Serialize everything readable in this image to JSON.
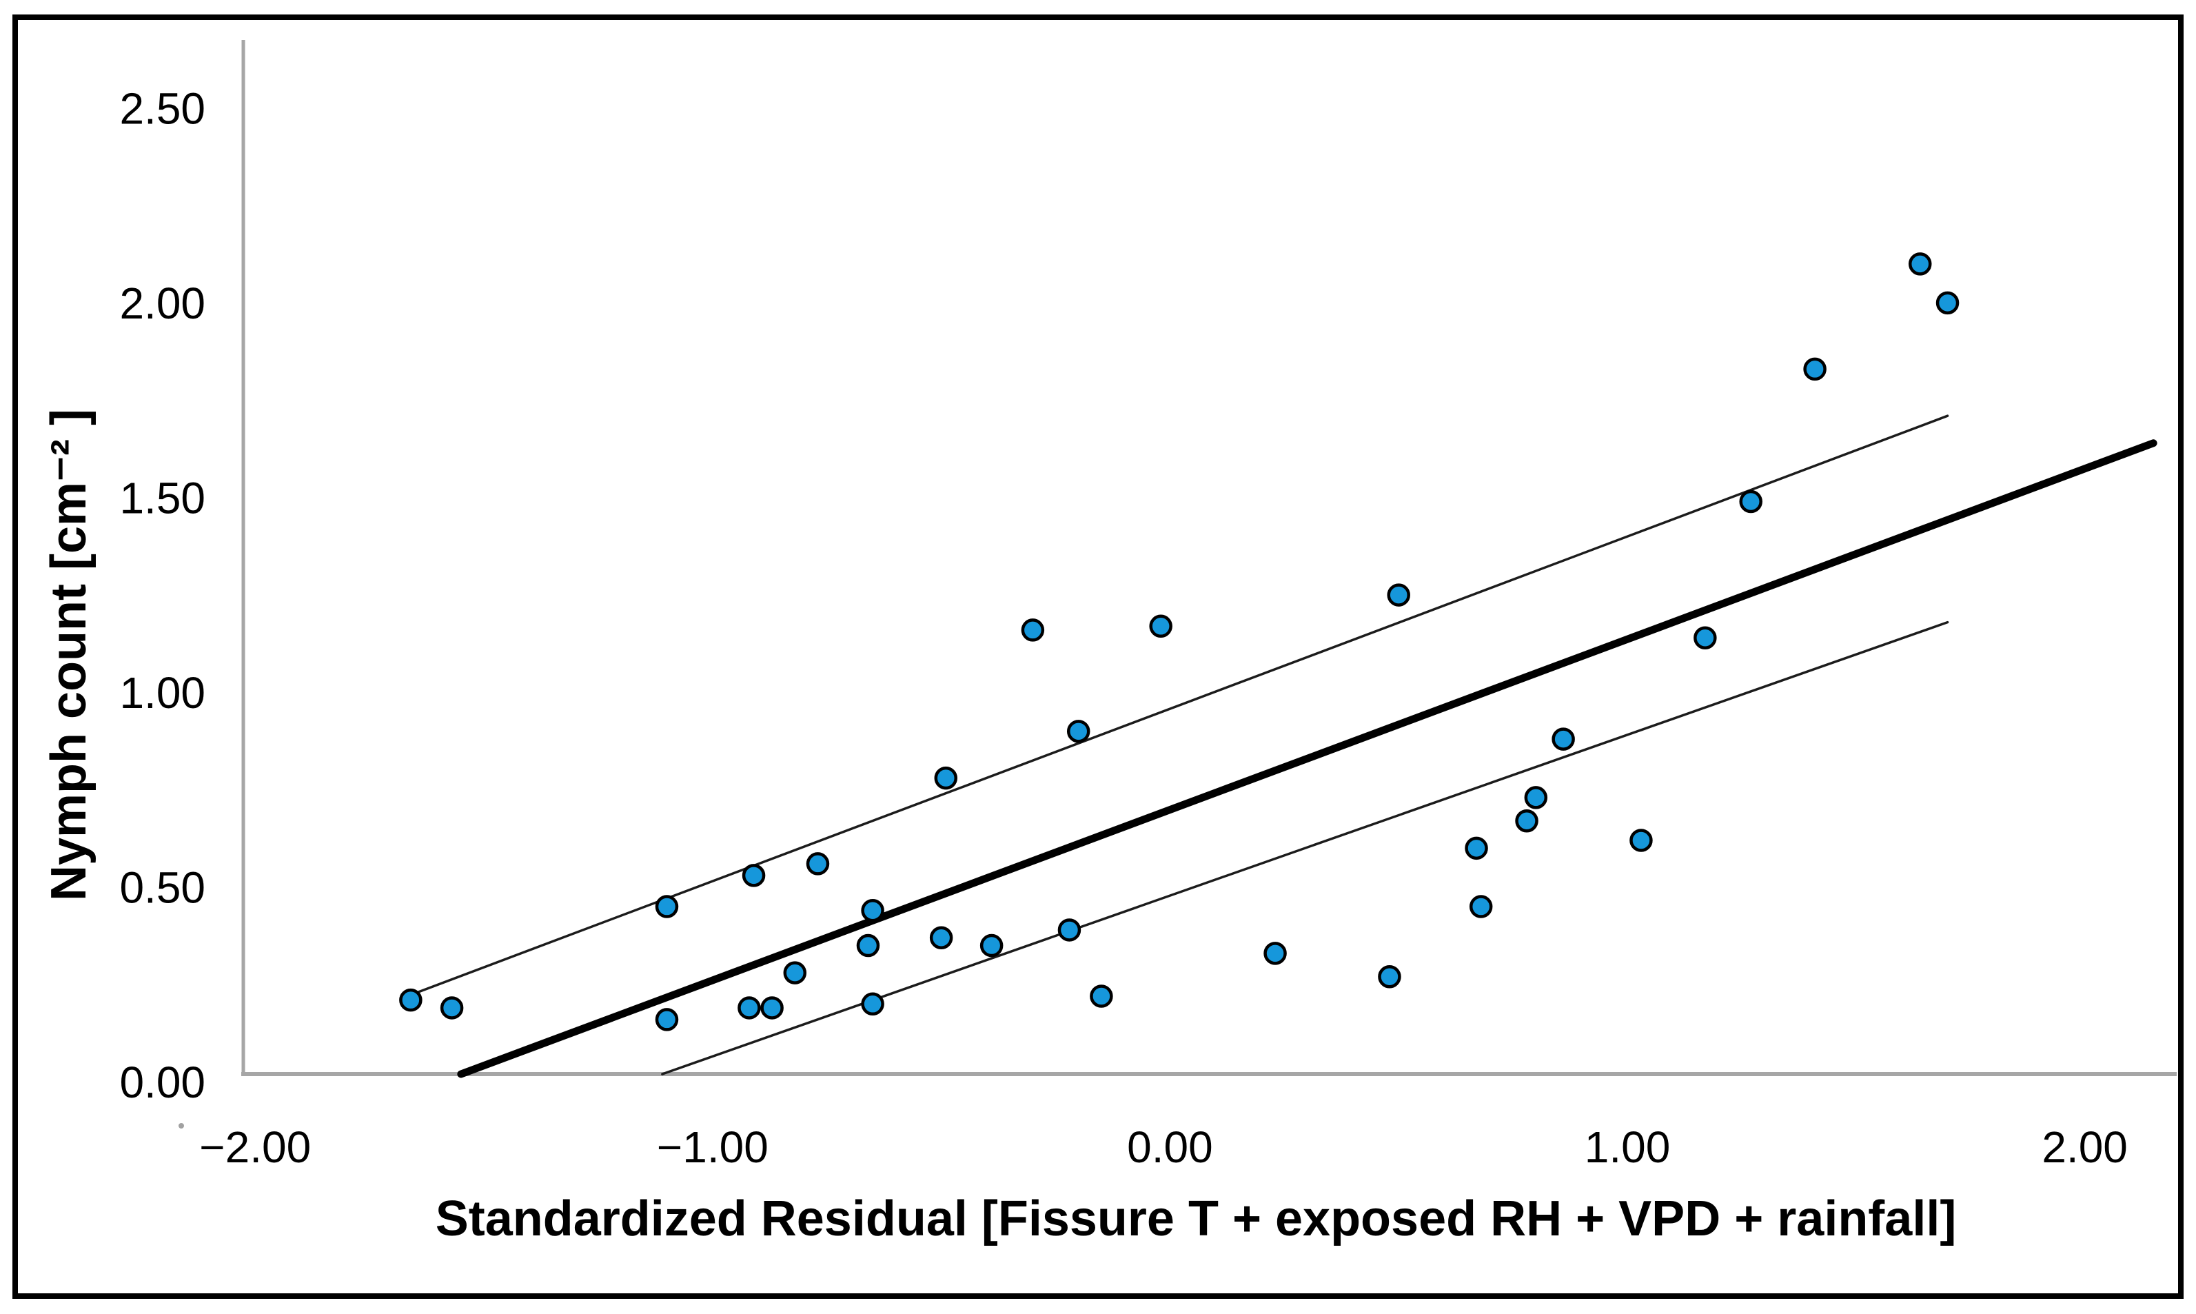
{
  "figure": {
    "background": "#ffffff",
    "border_color": "#000000"
  },
  "chart_data": {
    "type": "scatter",
    "title": "",
    "xlabel": "Standardized Residual [Fissure T + exposed RH + VPD + rainfall]",
    "ylabel": "Nymph count [cm⁻² ]",
    "xlim": [
      -2.026,
      2.201
    ],
    "ylim": [
      0,
      2.655
    ],
    "grid": false,
    "legend": "none",
    "x_ticks": [
      {
        "label": "−2.00",
        "value": -2
      },
      {
        "label": "−1.00",
        "value": -1
      },
      {
        "label": "0.00",
        "value": 0
      },
      {
        "label": "1.00",
        "value": 1
      },
      {
        "label": "2.00",
        "value": 2
      }
    ],
    "y_ticks": [
      {
        "label": "0.00",
        "value": 0
      },
      {
        "label": "0.50",
        "value": 0.5
      },
      {
        "label": "1.00",
        "value": 1
      },
      {
        "label": "1.50",
        "value": 1.5
      },
      {
        "label": "2.00",
        "value": 2
      },
      {
        "label": "2.50",
        "value": 2.5
      }
    ],
    "series": [
      {
        "name": "observations",
        "marker": "circle",
        "points": [
          [
            -1.66,
            0.19
          ],
          [
            -1.57,
            0.17
          ],
          [
            -1.1,
            0.43
          ],
          [
            -1.1,
            0.14
          ],
          [
            -0.91,
            0.51
          ],
          [
            -0.92,
            0.17
          ],
          [
            -0.87,
            0.17
          ],
          [
            -0.82,
            0.26
          ],
          [
            -0.77,
            0.54
          ],
          [
            -0.66,
            0.33
          ],
          [
            -0.65,
            0.42
          ],
          [
            -0.65,
            0.18
          ],
          [
            -0.5,
            0.35
          ],
          [
            -0.49,
            0.76
          ],
          [
            -0.39,
            0.33
          ],
          [
            -0.3,
            1.14
          ],
          [
            -0.22,
            0.37
          ],
          [
            -0.2,
            0.88
          ],
          [
            -0.15,
            0.2
          ],
          [
            -0.02,
            1.15
          ],
          [
            0.23,
            0.31
          ],
          [
            0.48,
            0.25
          ],
          [
            0.5,
            1.23
          ],
          [
            0.67,
            0.58
          ],
          [
            0.68,
            0.43
          ],
          [
            0.78,
            0.65
          ],
          [
            0.8,
            0.71
          ],
          [
            0.86,
            0.86
          ],
          [
            1.03,
            0.6
          ],
          [
            1.17,
            1.12
          ],
          [
            1.27,
            1.47
          ],
          [
            1.41,
            1.81
          ],
          [
            1.64,
            2.08
          ],
          [
            1.7,
            1.98
          ]
        ]
      }
    ],
    "fit_line": {
      "name": "linear-fit",
      "x1": -1.55,
      "y1": 0.0,
      "x2": 2.15,
      "y2": 1.62
    },
    "ci_upper": {
      "name": "confidence-band-upper",
      "x1": -1.645,
      "y1": 0.21,
      "x2": 1.7,
      "y2": 1.69
    },
    "ci_lower": {
      "name": "confidence-band-lower",
      "x1": -1.11,
      "y1": 0.0,
      "x2": 1.7,
      "y2": 1.16
    },
    "colors": {
      "point_fill": "#1697DB",
      "point_stroke": "#000000",
      "fit_line": "#000000",
      "ci_line": "#1c1c1c",
      "axis_line": "#a6a6a6",
      "text": "#000000"
    }
  }
}
